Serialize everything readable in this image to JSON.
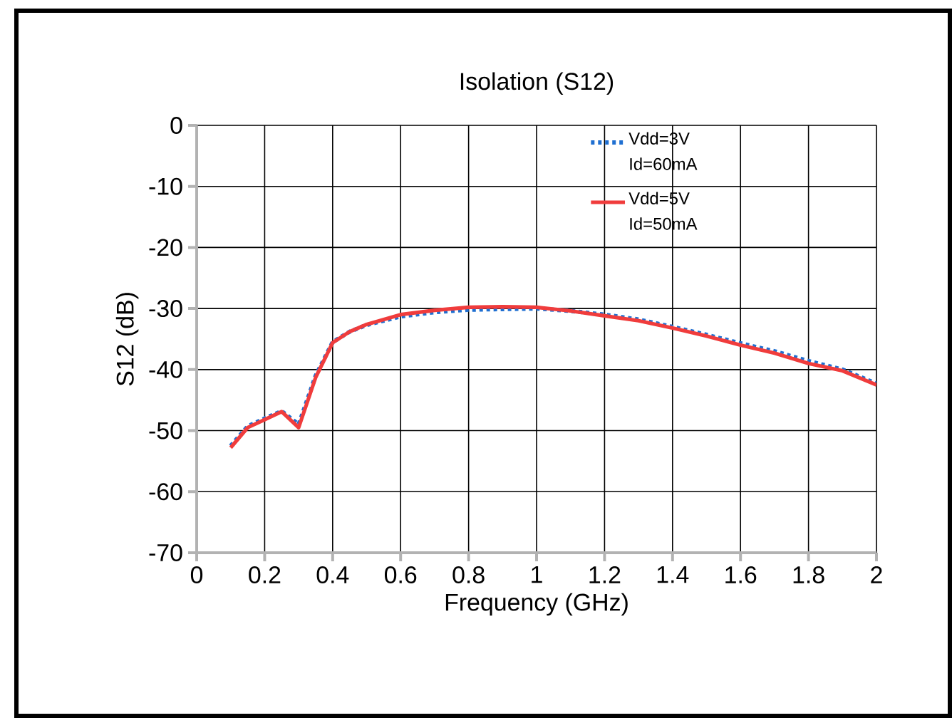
{
  "chart_data": {
    "type": "line",
    "title": "Isolation (S12)",
    "xlabel": "Frequency (GHz)",
    "ylabel": "S12 (dB)",
    "xlim": [
      0,
      2
    ],
    "xticks": [
      0,
      0.2,
      0.4,
      0.6,
      0.8,
      1,
      1.2,
      1.4,
      1.6,
      1.8,
      2
    ],
    "ylim": [
      -70,
      0
    ],
    "yticks": [
      -70,
      -60,
      -50,
      -40,
      -30,
      -20,
      -10,
      0
    ],
    "grid": true,
    "legend": "top right",
    "marker": "none",
    "x": [
      0.1,
      0.15,
      0.2,
      0.25,
      0.3,
      0.35,
      0.4,
      0.45,
      0.5,
      0.6,
      0.7,
      0.8,
      0.9,
      1.0,
      1.1,
      1.2,
      1.3,
      1.4,
      1.5,
      1.6,
      1.7,
      1.8,
      1.9,
      2.0
    ],
    "series": [
      {
        "name": "Vdd=3V Id=60mA",
        "color": "#1f6fd1",
        "line_style": "dotted",
        "values": [
          -52.5,
          -49.3,
          -48,
          -46.8,
          -49,
          -41,
          -35.5,
          -33.8,
          -32.7,
          -31.3,
          -30.6,
          -30.2,
          -30.1,
          -30,
          -30.4,
          -31,
          -31.8,
          -33,
          -34.3,
          -35.7,
          -37,
          -38.6,
          -40,
          -42.3
        ]
      },
      {
        "name": "Vdd=5V Id=50mA",
        "color": "#f03c3c",
        "line_style": "solid",
        "values": [
          -52.8,
          -49.5,
          -48.2,
          -46.9,
          -49.5,
          -41.3,
          -35.6,
          -33.8,
          -32.6,
          -31,
          -30.3,
          -29.8,
          -29.7,
          -29.8,
          -30.4,
          -31.2,
          -32,
          -33.2,
          -34.5,
          -36,
          -37.3,
          -39,
          -40.2,
          -42.5
        ]
      }
    ]
  }
}
